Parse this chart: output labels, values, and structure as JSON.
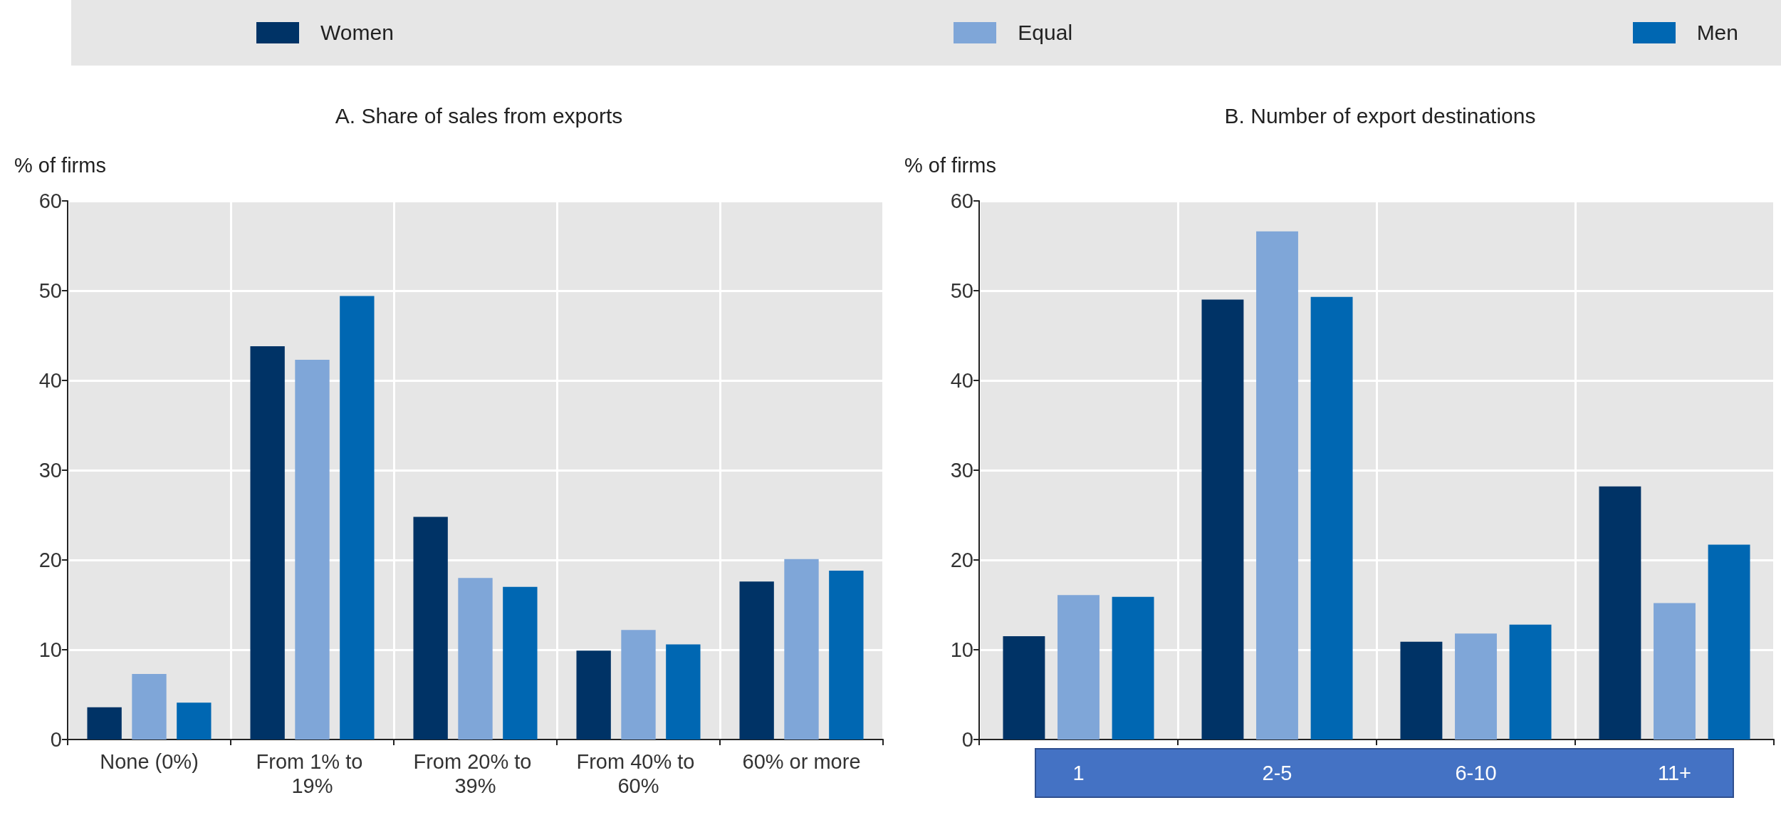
{
  "chart_data": [
    {
      "type": "bar",
      "title": "A. Share of sales from exports",
      "ylabel": "% of firms",
      "categories": [
        "None (0%)",
        "From 1% to 19%",
        "From 20% to 39%",
        "From 40% to 60%",
        "60% or more"
      ],
      "series": [
        {
          "name": "Women",
          "color": "#003366",
          "values": [
            3.6,
            43.8,
            24.8,
            9.9,
            17.6
          ]
        },
        {
          "name": "Equal",
          "color": "#7fa6d8",
          "values": [
            7.3,
            42.3,
            18.0,
            12.2,
            20.1
          ]
        },
        {
          "name": "Men",
          "color": "#0067b2",
          "values": [
            4.1,
            49.4,
            17.0,
            10.6,
            18.8
          ]
        }
      ],
      "ylim": [
        0,
        60
      ],
      "yticks": [
        0,
        10,
        20,
        30,
        40,
        50,
        60
      ],
      "grid": true,
      "legend": "top"
    },
    {
      "type": "bar",
      "title": "B. Number of export destinations",
      "ylabel": "% of firms",
      "categories": [
        "1",
        "2-5",
        "6-10",
        "11+"
      ],
      "series": [
        {
          "color": "#003366",
          "values": [
            11.5,
            49.0,
            10.9,
            28.2
          ]
        },
        {
          "color": "#7fa6d8",
          "values": [
            16.1,
            56.6,
            11.8,
            15.2
          ]
        },
        {
          "color": "#0067b2",
          "values": [
            15.9,
            49.3,
            12.8,
            21.7
          ]
        }
      ],
      "ylim": [
        0,
        60
      ],
      "yticks": [
        0,
        10,
        20,
        30,
        40,
        50,
        60
      ],
      "grid": true
    }
  ]
}
